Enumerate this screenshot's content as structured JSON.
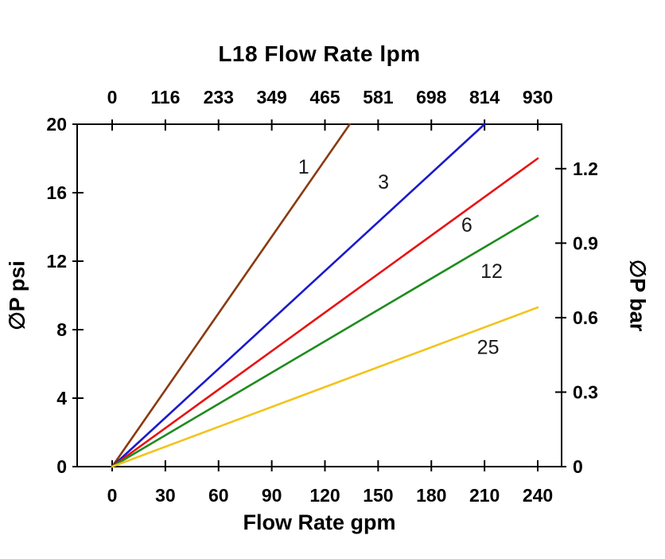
{
  "chart_data": {
    "type": "line",
    "title": "L18 Flow Rate lpm",
    "xlabel_bottom": "Flow Rate gpm",
    "ylabel_left": "∅P psi",
    "ylabel_right": "∅P bar",
    "xlim_gpm": [
      0,
      240
    ],
    "ylim_psi": [
      0,
      20
    ],
    "x_gpm_ticks": [
      0,
      30,
      60,
      90,
      120,
      150,
      180,
      210,
      240
    ],
    "x_lpm_tick_labels": [
      "0",
      "116",
      "233",
      "349",
      "465",
      "581",
      "698",
      "814",
      "930"
    ],
    "y_psi_ticks": [
      0,
      4,
      8,
      12,
      16,
      20
    ],
    "y_bar_ticks": [
      "0",
      "0.3",
      "0.6",
      "0.9",
      "1.2"
    ],
    "psi_per_bar": 14.5038,
    "grid": false,
    "legend": "inline-labels",
    "axis_color": "#000000",
    "series": [
      {
        "name": "1",
        "color": "#8a3a10",
        "points": [
          [
            0,
            0
          ],
          [
            134,
            20
          ]
        ],
        "label_at": [
          108,
          17.5
        ]
      },
      {
        "name": "3",
        "color": "#1a1acc",
        "points": [
          [
            0,
            0
          ],
          [
            210,
            20
          ]
        ],
        "label_at": [
          153,
          16.6
        ]
      },
      {
        "name": "6",
        "color": "#e81212",
        "points": [
          [
            0,
            0
          ],
          [
            240,
            18
          ]
        ],
        "label_at": [
          200,
          14.1
        ]
      },
      {
        "name": "12",
        "color": "#1e8c1e",
        "points": [
          [
            0,
            0
          ],
          [
            240,
            14.65
          ]
        ],
        "label_at": [
          214,
          11.4
        ]
      },
      {
        "name": "25",
        "color": "#f2c41d",
        "points": [
          [
            0,
            0
          ],
          [
            240,
            9.3
          ]
        ],
        "label_at": [
          212,
          6.95
        ]
      }
    ]
  }
}
